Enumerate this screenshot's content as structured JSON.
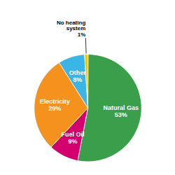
{
  "chart_data": {
    "type": "pie",
    "categories": [
      "Natural Gas",
      "Fuel Oil",
      "Electricity",
      "Other",
      "No heating\nsystem"
    ],
    "values": [
      53,
      9,
      29,
      8,
      1
    ],
    "value_labels": [
      "53%",
      "9%",
      "29%",
      "8%",
      "1%"
    ],
    "colors": [
      "#3a9e4a",
      "#d4006e",
      "#f5921e",
      "#3ab5e6",
      "#f5c400"
    ],
    "data_labels": true
  }
}
